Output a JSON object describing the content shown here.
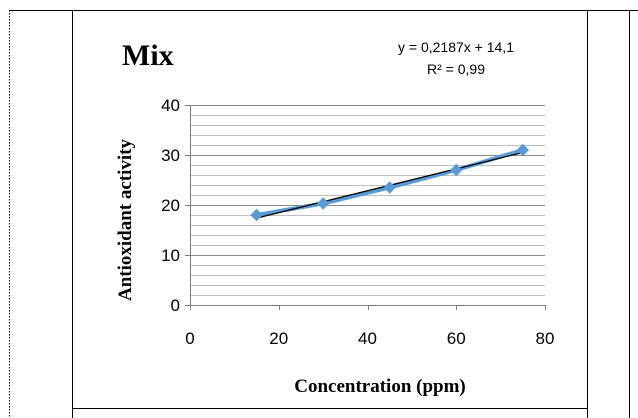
{
  "chart_data": {
    "type": "line",
    "title": "Mix",
    "xlabel": "Concentration (ppm)",
    "ylabel": "Antioxidant activity",
    "xlim": [
      0,
      80
    ],
    "ylim": [
      0,
      40
    ],
    "xticks": [
      "0",
      "20",
      "40",
      "60",
      "80"
    ],
    "yticks": [
      "0",
      "10",
      "20",
      "30",
      "40"
    ],
    "grid": true,
    "series": [
      {
        "x": [
          15,
          30,
          45,
          60,
          75
        ],
        "values": [
          18,
          20.3,
          23.5,
          27,
          31
        ],
        "color": "#5b9bd5",
        "marker": "diamond"
      }
    ],
    "trendline": {
      "type": "linear",
      "slope": 0.2187,
      "intercept": 14.1,
      "color": "#000000",
      "equation": "y = 0,2187x + 14,1",
      "r_squared": "R² = 0,99"
    }
  }
}
